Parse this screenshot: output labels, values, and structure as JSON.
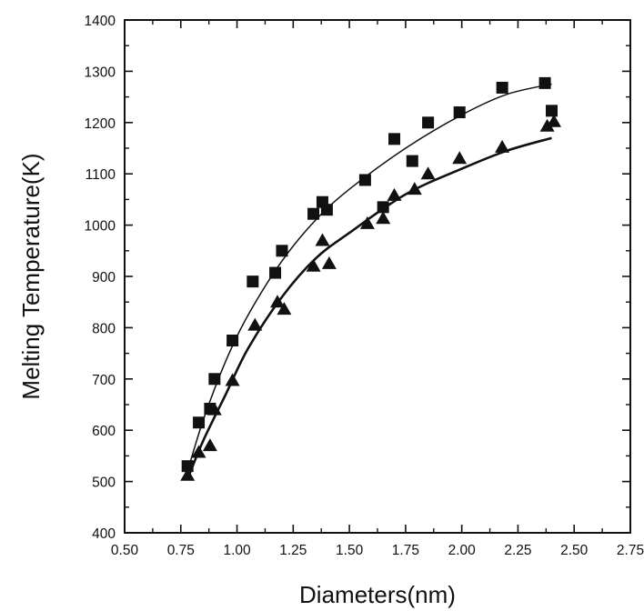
{
  "chart_data": {
    "type": "scatter",
    "title": "",
    "xlabel": "Diameters(nm)",
    "ylabel": "Melting Temperature(K)",
    "xlim": [
      0.5,
      2.75
    ],
    "ylim": [
      400,
      1400
    ],
    "xticks": [
      "0.50",
      "0.75",
      "1.00",
      "1.25",
      "1.50",
      "1.75",
      "2.00",
      "2.25",
      "2.50",
      "2.75"
    ],
    "yticks": [
      "400",
      "500",
      "600",
      "700",
      "800",
      "900",
      "1000",
      "1100",
      "1200",
      "1300",
      "1400"
    ],
    "grid": false,
    "legend": "none",
    "series": [
      {
        "marker": "square",
        "color": "#111111",
        "points": [
          [
            0.78,
            530
          ],
          [
            0.83,
            615
          ],
          [
            0.88,
            642
          ],
          [
            0.9,
            700
          ],
          [
            0.98,
            775
          ],
          [
            1.07,
            890
          ],
          [
            1.17,
            907
          ],
          [
            1.2,
            950
          ],
          [
            1.34,
            1022
          ],
          [
            1.38,
            1045
          ],
          [
            1.4,
            1030
          ],
          [
            1.57,
            1088
          ],
          [
            1.65,
            1035
          ],
          [
            1.7,
            1168
          ],
          [
            1.78,
            1125
          ],
          [
            1.85,
            1200
          ],
          [
            1.99,
            1220
          ],
          [
            2.18,
            1268
          ],
          [
            2.37,
            1277
          ],
          [
            2.4,
            1223
          ]
        ],
        "fit_curve": [
          [
            0.78,
            520
          ],
          [
            0.85,
            620
          ],
          [
            0.95,
            735
          ],
          [
            1.05,
            825
          ],
          [
            1.2,
            930
          ],
          [
            1.35,
            1010
          ],
          [
            1.5,
            1070
          ],
          [
            1.75,
            1150
          ],
          [
            2.0,
            1215
          ],
          [
            2.2,
            1255
          ],
          [
            2.4,
            1275
          ]
        ]
      },
      {
        "marker": "triangle",
        "color": "#111111",
        "points": [
          [
            0.78,
            512
          ],
          [
            0.83,
            557
          ],
          [
            0.88,
            570
          ],
          [
            0.9,
            640
          ],
          [
            0.98,
            697
          ],
          [
            1.08,
            805
          ],
          [
            1.18,
            850
          ],
          [
            1.21,
            836
          ],
          [
            1.34,
            920
          ],
          [
            1.38,
            970
          ],
          [
            1.41,
            925
          ],
          [
            1.58,
            1003
          ],
          [
            1.65,
            1013
          ],
          [
            1.7,
            1058
          ],
          [
            1.79,
            1070
          ],
          [
            1.85,
            1100
          ],
          [
            1.99,
            1130
          ],
          [
            2.18,
            1152
          ],
          [
            2.38,
            1193
          ],
          [
            2.41,
            1202
          ]
        ],
        "fit_curve": [
          [
            0.78,
            505
          ],
          [
            0.85,
            580
          ],
          [
            0.95,
            670
          ],
          [
            1.05,
            760
          ],
          [
            1.2,
            860
          ],
          [
            1.35,
            935
          ],
          [
            1.5,
            985
          ],
          [
            1.75,
            1060
          ],
          [
            2.0,
            1110
          ],
          [
            2.2,
            1145
          ],
          [
            2.4,
            1170
          ]
        ]
      }
    ]
  }
}
